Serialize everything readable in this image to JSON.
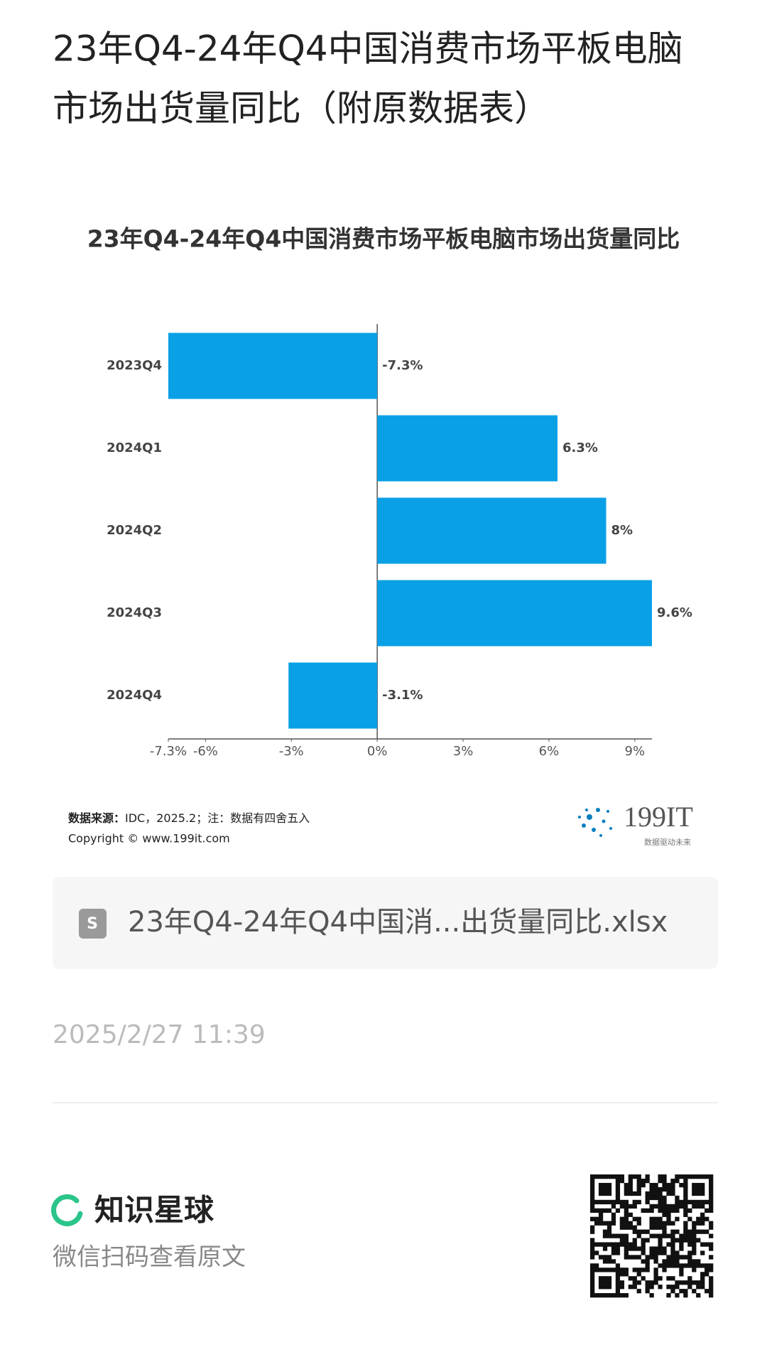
{
  "header": {
    "title_lines": [
      "23年Q4-24年Q4中国消费市场平板电脑",
      "市场出货量同比（附原数据表）"
    ]
  },
  "chart_data": {
    "type": "hbar",
    "title": "23年Q4-24年Q4中国消费市场平板电脑市场出货量同比",
    "categories": [
      "2023Q4",
      "2024Q1",
      "2024Q2",
      "2024Q3",
      "2024Q4"
    ],
    "values": [
      -7.3,
      6.3,
      8,
      9.6,
      -3.1
    ],
    "value_labels": [
      "-7.3%",
      "6.3%",
      "8%",
      "9.6%",
      "-3.1%"
    ],
    "color": "#0aa0e6",
    "xlim": [
      -7.3,
      9.6
    ],
    "xticks": [
      {
        "value": -7.3,
        "label": "-7.3%"
      },
      {
        "value": -6,
        "label": "-6%"
      },
      {
        "value": -3,
        "label": "-3%"
      },
      {
        "value": 0,
        "label": "0%"
      },
      {
        "value": 3,
        "label": "3%"
      },
      {
        "value": 6,
        "label": "6%"
      },
      {
        "value": 9,
        "label": "9%"
      }
    ]
  },
  "source": {
    "label": "数据来源：",
    "text": "IDC，2025.2；注：数据有四舍五入",
    "copyright": "Copyright ©  www.199it.com"
  },
  "logo": {
    "name": "199IT",
    "tagline": "数据驱动未来"
  },
  "file": {
    "name": "23年Q4-24年Q4中国消...出货量同比.xlsx"
  },
  "timestamp": "2025/2/27 11:39",
  "footer": {
    "brand": "知识星球",
    "hint": "微信扫码查看原文"
  }
}
